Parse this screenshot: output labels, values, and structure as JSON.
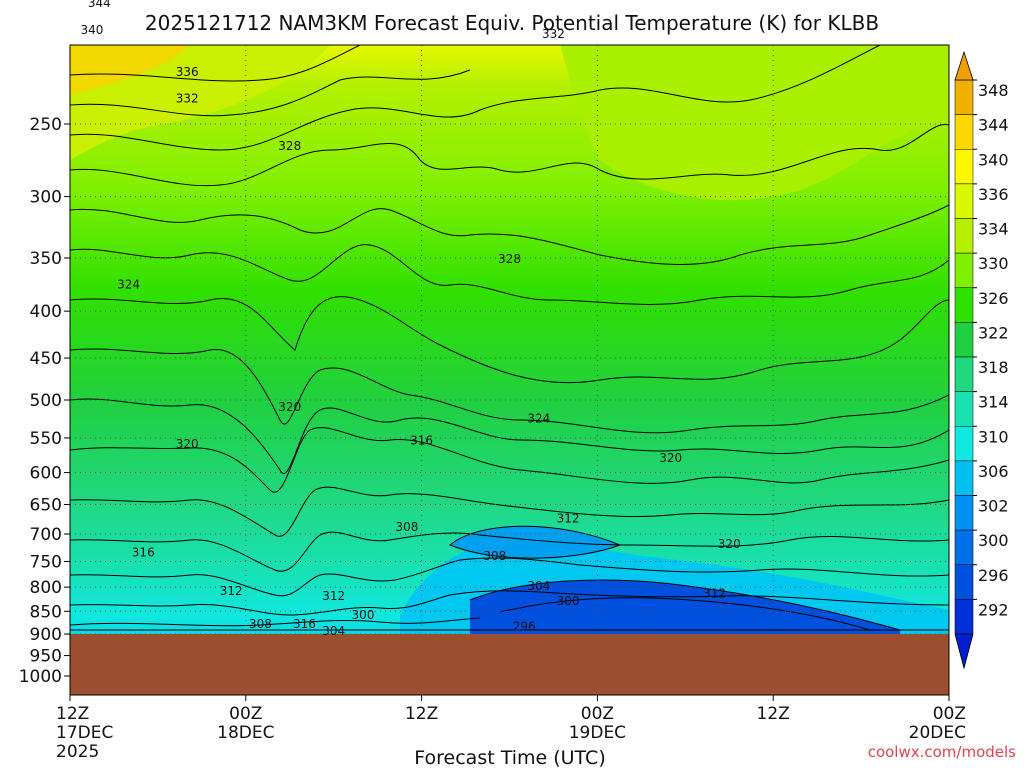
{
  "chart_data": {
    "type": "heatmap",
    "title": "2025121712 NAM3KM Forecast Equiv. Potential Temperature (K) for KLBB",
    "xlabel": "Forecast Time (UTC)",
    "ylabel": "",
    "y_scale": "log-pressure",
    "y_ticks": [
      "250",
      "300",
      "350",
      "400",
      "450",
      "500",
      "550",
      "600",
      "650",
      "700",
      "750",
      "800",
      "850",
      "900",
      "950",
      "1000"
    ],
    "x_ticks": [
      {
        "line1": "12Z",
        "line2": "17DEC",
        "line3": "2025"
      },
      {
        "line1": "00Z",
        "line2": "18DEC",
        "line3": ""
      },
      {
        "line1": "12Z",
        "line2": "",
        "line3": ""
      },
      {
        "line1": "00Z",
        "line2": "19DEC",
        "line3": ""
      },
      {
        "line1": "12Z",
        "line2": "",
        "line3": ""
      },
      {
        "line1": "00Z",
        "line2": "20DEC",
        "line3": ""
      }
    ],
    "colorbar": {
      "labels": [
        "348",
        "344",
        "340",
        "336",
        "334",
        "330",
        "326",
        "322",
        "318",
        "314",
        "310",
        "306",
        "302",
        "300",
        "296",
        "292"
      ],
      "colors": [
        "#f0b000",
        "#fcd800",
        "#fcf800",
        "#dcf800",
        "#b4f000",
        "#80f000",
        "#30e000",
        "#20d040",
        "#20d880",
        "#18e0b0",
        "#10e8e0",
        "#00c0f0",
        "#0090f0",
        "#0070e8",
        "#0050e0",
        "#0030d8"
      ]
    },
    "contour_labels": [
      {
        "text": "344",
        "x_hours": 2,
        "p": 185
      },
      {
        "text": "340",
        "x_hours": 1.5,
        "p": 198
      },
      {
        "text": "336",
        "x_hours": 8,
        "p": 220
      },
      {
        "text": "332",
        "x_hours": 8,
        "p": 235
      },
      {
        "text": "328",
        "x_hours": 15,
        "p": 265
      },
      {
        "text": "332",
        "x_hours": 33,
        "p": 200
      },
      {
        "text": "324",
        "x_hours": 4,
        "p": 375
      },
      {
        "text": "328",
        "x_hours": 30,
        "p": 352
      },
      {
        "text": "320",
        "x_hours": 15,
        "p": 510
      },
      {
        "text": "320",
        "x_hours": 8,
        "p": 560
      },
      {
        "text": "316",
        "x_hours": 24,
        "p": 555
      },
      {
        "text": "324",
        "x_hours": 32,
        "p": 525
      },
      {
        "text": "320",
        "x_hours": 41,
        "p": 580
      },
      {
        "text": "316",
        "x_hours": 5,
        "p": 735
      },
      {
        "text": "312",
        "x_hours": 11,
        "p": 810
      },
      {
        "text": "308",
        "x_hours": 23,
        "p": 690
      },
      {
        "text": "312",
        "x_hours": 34,
        "p": 675
      },
      {
        "text": "308",
        "x_hours": 29,
        "p": 742
      },
      {
        "text": "320",
        "x_hours": 45,
        "p": 720
      },
      {
        "text": "312",
        "x_hours": 18,
        "p": 820
      },
      {
        "text": "304",
        "x_hours": 32,
        "p": 800
      },
      {
        "text": "300",
        "x_hours": 34,
        "p": 830
      },
      {
        "text": "312",
        "x_hours": 44,
        "p": 815
      },
      {
        "text": "300",
        "x_hours": 20,
        "p": 860
      },
      {
        "text": "308",
        "x_hours": 13,
        "p": 880
      },
      {
        "text": "316",
        "x_hours": 16,
        "p": 880
      },
      {
        "text": "304",
        "x_hours": 18,
        "p": 895
      },
      {
        "text": "296",
        "x_hours": 31,
        "p": 885
      }
    ],
    "terrain_surface_hPa": 895,
    "credit": "coolwx.com/models"
  }
}
